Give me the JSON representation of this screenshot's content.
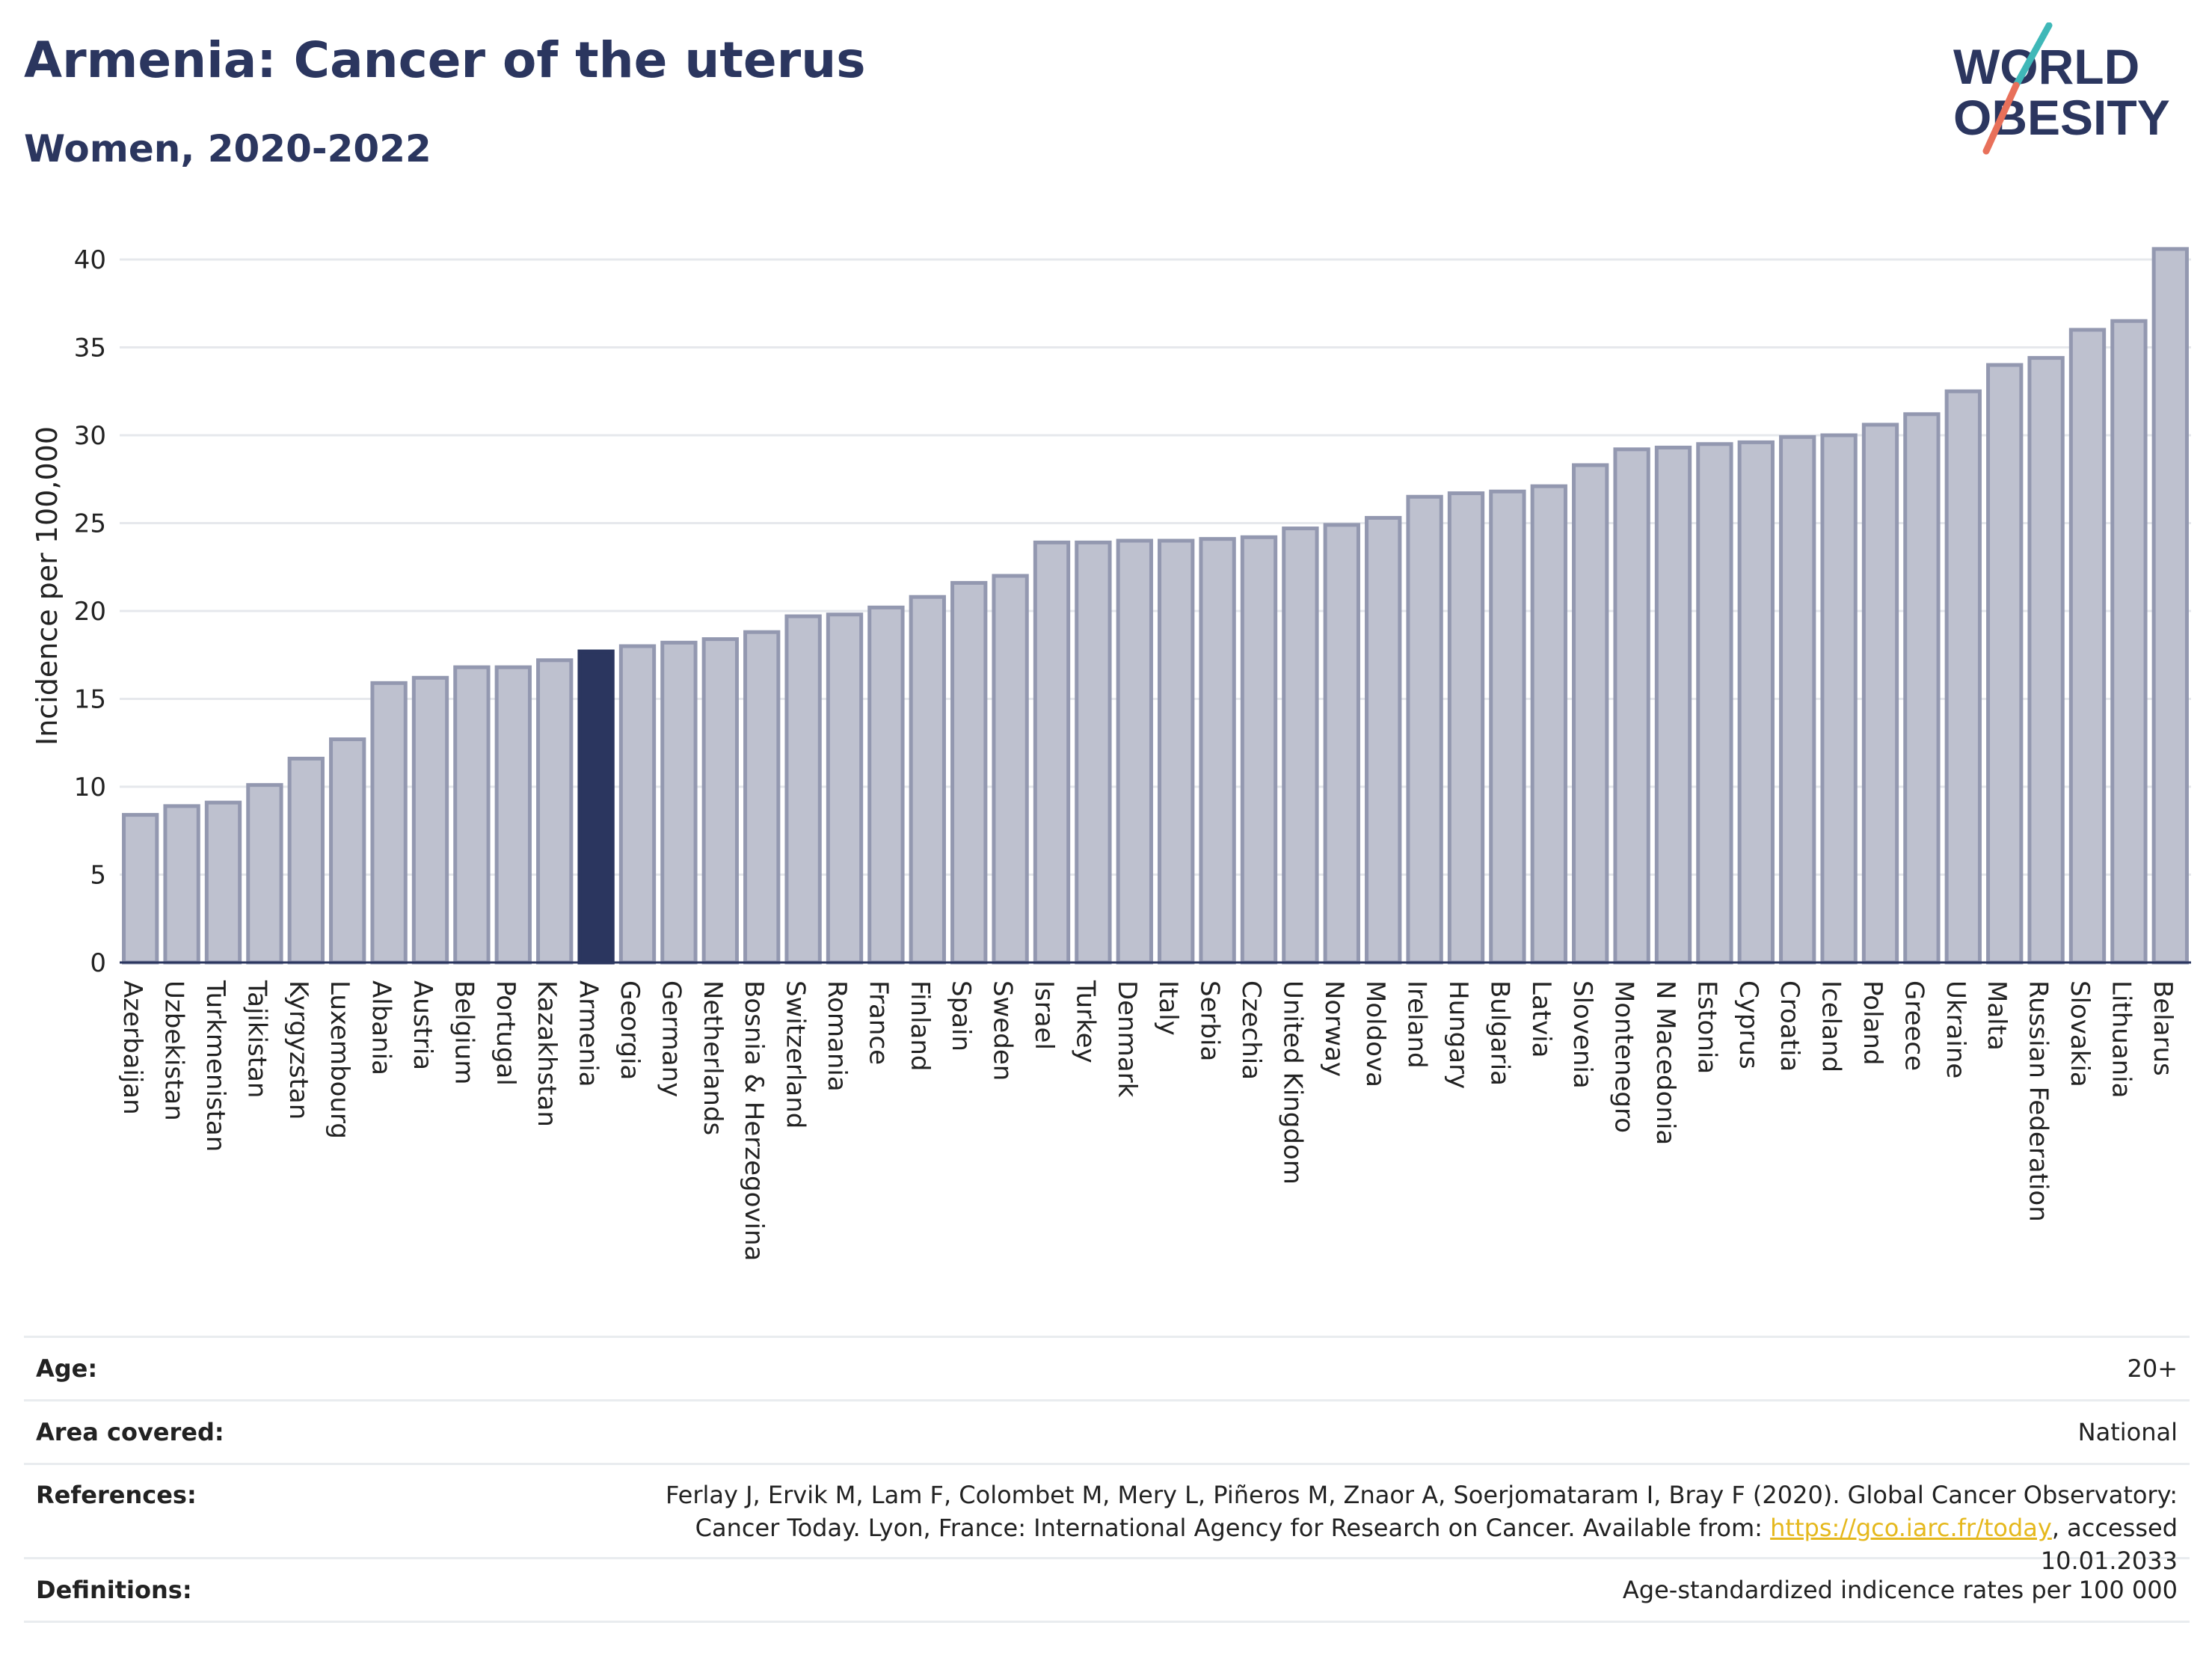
{
  "header": {
    "title": "Armenia: Cancer of the uterus",
    "subtitle": "Women, 2020-2022"
  },
  "logo": {
    "line1": "WORLD",
    "line2": "OBESITY"
  },
  "colors": {
    "highlight_bar": "#2b365f",
    "bar_fill": "#bec1cf",
    "bar_stroke": "#9398b0",
    "grid": "#e6e8ec",
    "title": "#2b365f",
    "logo_teal": "#3fb8b8",
    "logo_coral": "#e8705a"
  },
  "chart_data": {
    "type": "bar",
    "ylabel": "Incidence per 100,000",
    "ylim": [
      0,
      42
    ],
    "yticks": [
      0,
      5,
      10,
      15,
      20,
      25,
      30,
      35,
      40
    ],
    "grid": true,
    "highlight": "Armenia",
    "categories": [
      "Azerbaijan",
      "Uzbekistan",
      "Turkmenistan",
      "Tajikistan",
      "Kyrgyzstan",
      "Luxembourg",
      "Albania",
      "Austria",
      "Belgium",
      "Portugal",
      "Kazakhstan",
      "Armenia",
      "Georgia",
      "Germany",
      "Netherlands",
      "Bosnia & Herzegovina",
      "Switzerland",
      "Romania",
      "France",
      "Finland",
      "Spain",
      "Sweden",
      "Israel",
      "Turkey",
      "Denmark",
      "Italy",
      "Serbia",
      "Czechia",
      "United Kingdom",
      "Norway",
      "Moldova",
      "Ireland",
      "Hungary",
      "Bulgaria",
      "Latvia",
      "Slovenia",
      "Montenegro",
      "N Macedonia",
      "Estonia",
      "Cyprus",
      "Croatia",
      "Iceland",
      "Poland",
      "Greece",
      "Ukraine",
      "Malta",
      "Russian Federation",
      "Slovakia",
      "Lithuania",
      "Belarus"
    ],
    "values": [
      8.4,
      8.9,
      9.1,
      10.1,
      11.6,
      12.7,
      15.9,
      16.2,
      16.8,
      16.8,
      17.2,
      17.7,
      18.0,
      18.2,
      18.4,
      18.8,
      19.7,
      19.8,
      20.2,
      20.8,
      21.6,
      22.0,
      23.9,
      23.9,
      24.0,
      24.0,
      24.1,
      24.2,
      24.7,
      24.9,
      25.3,
      26.5,
      26.7,
      26.8,
      27.1,
      28.3,
      29.2,
      29.3,
      29.5,
      29.6,
      29.9,
      30.0,
      30.6,
      31.2,
      32.5,
      34.0,
      34.4,
      36.0,
      36.5,
      40.6
    ]
  },
  "meta": {
    "age_label": "Age:",
    "age_value": "20+",
    "area_label": "Area covered:",
    "area_value": "National",
    "references_label": "References:",
    "references_text": "Ferlay J, Ervik M, Lam F, Colombet M, Mery L, Piñeros M, Znaor A, Soerjomataram I, Bray F (2020). Global Cancer Observatory: Cancer Today. Lyon, France: International Agency for Research on Cancer. Available from: ",
    "references_link": "https://gco.iarc.fr/today",
    "references_suffix": ", accessed 10.01.2033",
    "definitions_label": "Definitions:",
    "definitions_value": "Age-standardized indicence rates per 100 000"
  }
}
